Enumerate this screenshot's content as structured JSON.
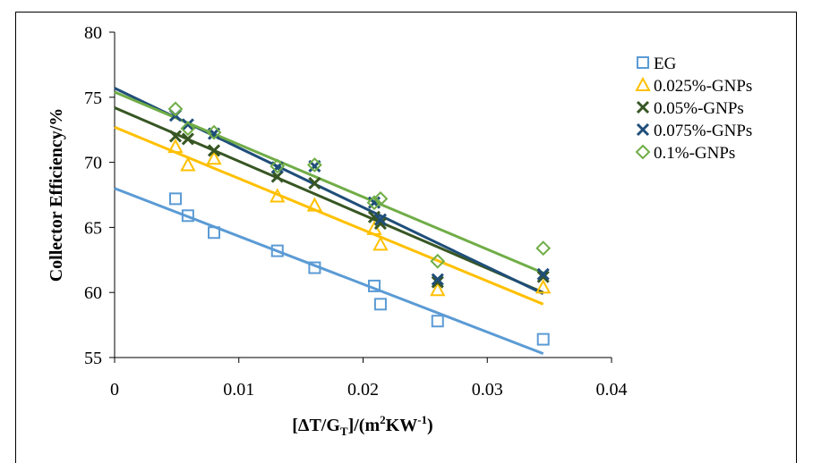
{
  "chart_data": {
    "type": "scatter",
    "xlabel": "[ΔT/G",
    "xlabel_sub": "T",
    "xlabel_mid": "]/(m",
    "xlabel_sup1": "2",
    "xlabel_mid2": "KW",
    "xlabel_sup2": "-1",
    "xlabel_end": ")",
    "ylabel": "Collector  Efficiency/%",
    "xlim": [
      0,
      0.04
    ],
    "ylim": [
      55,
      80
    ],
    "xticks": [
      0,
      0.01,
      0.02,
      0.03,
      0.04
    ],
    "xtick_labels": [
      "0",
      "0.01",
      "0.02",
      "0.03",
      "0.04"
    ],
    "yticks": [
      55,
      60,
      65,
      70,
      75,
      80
    ],
    "ytick_labels": [
      "55",
      "60",
      "65",
      "70",
      "75",
      "80"
    ],
    "legend_position": "right",
    "series": [
      {
        "name": "EG",
        "marker": "square",
        "color": "#5b9bd5",
        "points": [
          [
            0.0049,
            67.2
          ],
          [
            0.0059,
            65.9
          ],
          [
            0.008,
            64.6
          ],
          [
            0.0131,
            63.2
          ],
          [
            0.0161,
            61.9
          ],
          [
            0.0209,
            60.5
          ],
          [
            0.0214,
            59.1
          ],
          [
            0.026,
            57.8
          ],
          [
            0.0345,
            56.4
          ]
        ],
        "trend": {
          "x0": 0,
          "y0": 68.0,
          "x1": 0.0345,
          "y1": 55.3
        }
      },
      {
        "name": "0.025%-GNPs",
        "marker": "triangle",
        "color": "#ffc000",
        "points": [
          [
            0.0049,
            71.2
          ],
          [
            0.0059,
            69.8
          ],
          [
            0.008,
            70.3
          ],
          [
            0.0131,
            67.4
          ],
          [
            0.0161,
            66.7
          ],
          [
            0.0209,
            64.9
          ],
          [
            0.0214,
            63.7
          ],
          [
            0.026,
            60.2
          ],
          [
            0.0345,
            60.4
          ]
        ],
        "trend": {
          "x0": 0,
          "y0": 72.7,
          "x1": 0.0345,
          "y1": 59.1
        }
      },
      {
        "name": "0.05%-GNPs",
        "marker": "x",
        "color": "#375623",
        "points": [
          [
            0.0049,
            72.0
          ],
          [
            0.0059,
            71.8
          ],
          [
            0.008,
            70.9
          ],
          [
            0.0131,
            68.9
          ],
          [
            0.0161,
            68.4
          ],
          [
            0.0209,
            65.8
          ],
          [
            0.0214,
            65.3
          ],
          [
            0.026,
            60.8
          ],
          [
            0.0345,
            61.2
          ]
        ],
        "trend": {
          "x0": 0,
          "y0": 74.2,
          "x1": 0.0345,
          "y1": 60.0
        }
      },
      {
        "name": "0.075%-GNPs",
        "marker": "x",
        "color": "#1f4e79",
        "points": [
          [
            0.0049,
            73.6
          ],
          [
            0.0059,
            72.9
          ],
          [
            0.008,
            72.2
          ],
          [
            0.0131,
            69.6
          ],
          [
            0.0161,
            69.7
          ],
          [
            0.0209,
            66.9
          ],
          [
            0.0214,
            65.6
          ],
          [
            0.026,
            61.0
          ],
          [
            0.0345,
            61.4
          ]
        ],
        "trend": {
          "x0": 0,
          "y0": 75.7,
          "x1": 0.0345,
          "y1": 59.9
        }
      },
      {
        "name": "0.1%-GNPs",
        "marker": "diamond",
        "color": "#70ad47",
        "points": [
          [
            0.0049,
            74.1
          ],
          [
            0.0059,
            72.6
          ],
          [
            0.008,
            72.3
          ],
          [
            0.0131,
            69.7
          ],
          [
            0.0161,
            69.8
          ],
          [
            0.0209,
            66.9
          ],
          [
            0.0214,
            67.2
          ],
          [
            0.026,
            62.4
          ],
          [
            0.0345,
            63.4
          ]
        ],
        "trend": {
          "x0": 0,
          "y0": 75.4,
          "x1": 0.0345,
          "y1": 61.5
        }
      }
    ]
  }
}
